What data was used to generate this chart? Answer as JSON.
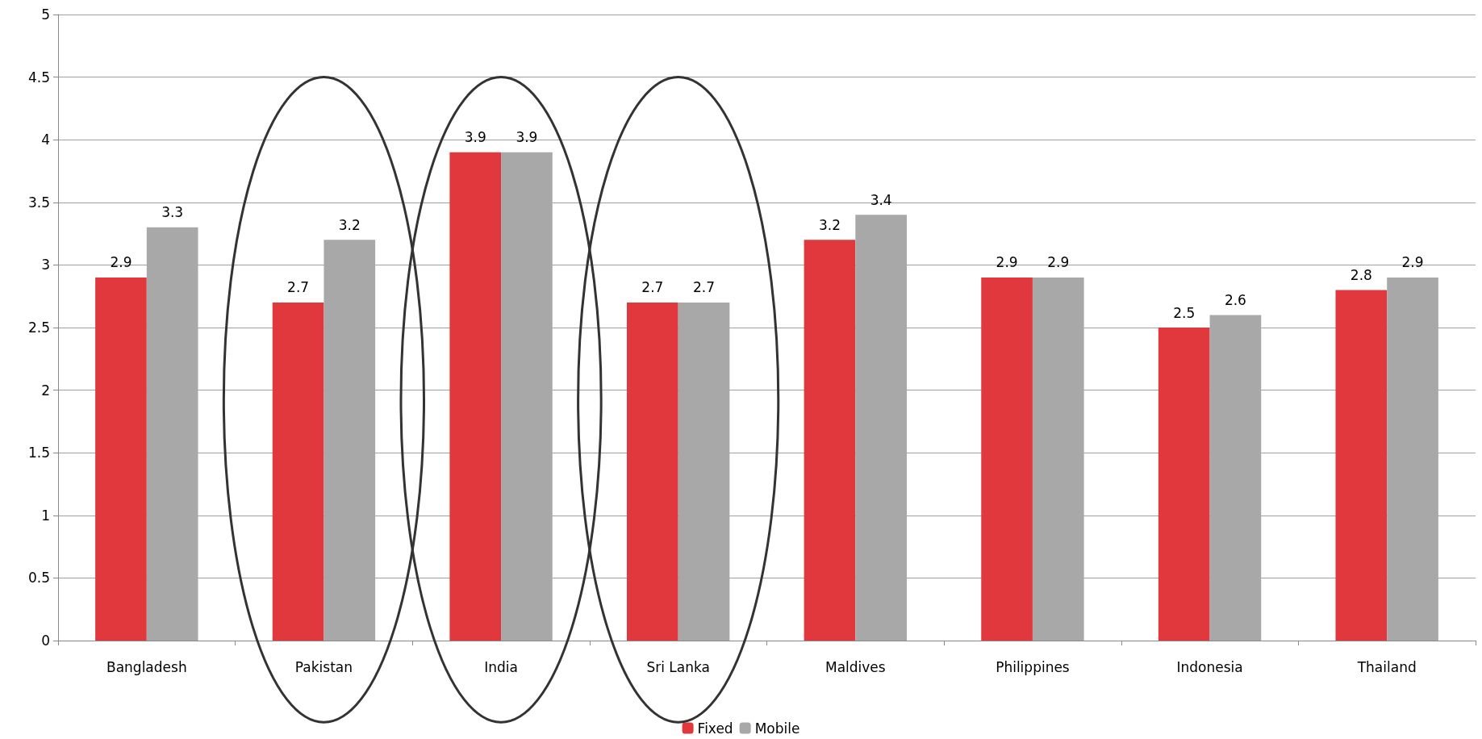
{
  "chart_data": {
    "type": "bar",
    "categories": [
      "Bangladesh",
      "Pakistan",
      "India",
      "Sri Lanka",
      "Maldives",
      "Philippines",
      "Indonesia",
      "Thailand"
    ],
    "series": [
      {
        "name": "Fixed",
        "color": "#e0383c",
        "values": [
          2.9,
          2.7,
          3.9,
          2.7,
          3.2,
          2.9,
          2.5,
          2.8
        ]
      },
      {
        "name": "Mobile",
        "color": "#a8a8a8",
        "values": [
          3.3,
          3.2,
          3.9,
          2.7,
          3.4,
          2.9,
          2.6,
          2.9
        ]
      }
    ],
    "ylim": [
      0,
      5
    ],
    "yticks": [
      0,
      0.5,
      1,
      1.5,
      2,
      2.5,
      3,
      3.5,
      4,
      4.5,
      5
    ],
    "grid": "y",
    "legend": "bottom",
    "data_labels": true
  }
}
